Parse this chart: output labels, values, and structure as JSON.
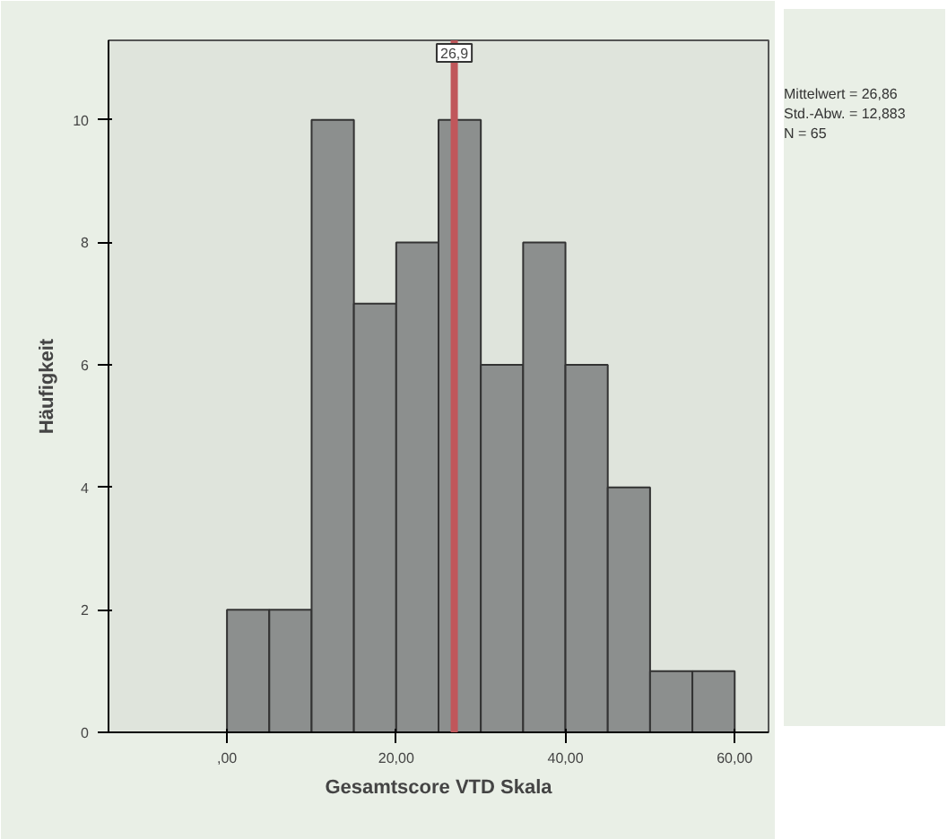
{
  "chart_data": {
    "type": "histogram",
    "xlabel": "Gesamtscore VTD Skala",
    "ylabel": "Häufigkeit",
    "bins": [
      0,
      5,
      10,
      15,
      20,
      25,
      30,
      35,
      40,
      45,
      50,
      55,
      60
    ],
    "values": [
      2,
      2,
      10,
      7,
      8,
      10,
      6,
      8,
      6,
      4,
      1,
      1
    ],
    "color": "#8c8f8e",
    "xlim": [
      -14,
      64
    ],
    "ylim": [
      0,
      11.3
    ],
    "xticks": [
      {
        "value": 0,
        "label": ",00"
      },
      {
        "value": 20,
        "label": "20,00"
      },
      {
        "value": 40,
        "label": "40,00"
      },
      {
        "value": 60,
        "label": "60,00"
      }
    ],
    "yticks": [
      0,
      2,
      4,
      6,
      8,
      10
    ],
    "grid": false,
    "ref_lines": [
      {
        "axis": "x",
        "value": 26.86,
        "label": "26,9",
        "color": "#c0575b"
      }
    ],
    "annotations": [
      "Mittelwert = 26,86",
      "Std.-Abw. = 12,883",
      "N = 65"
    ]
  }
}
